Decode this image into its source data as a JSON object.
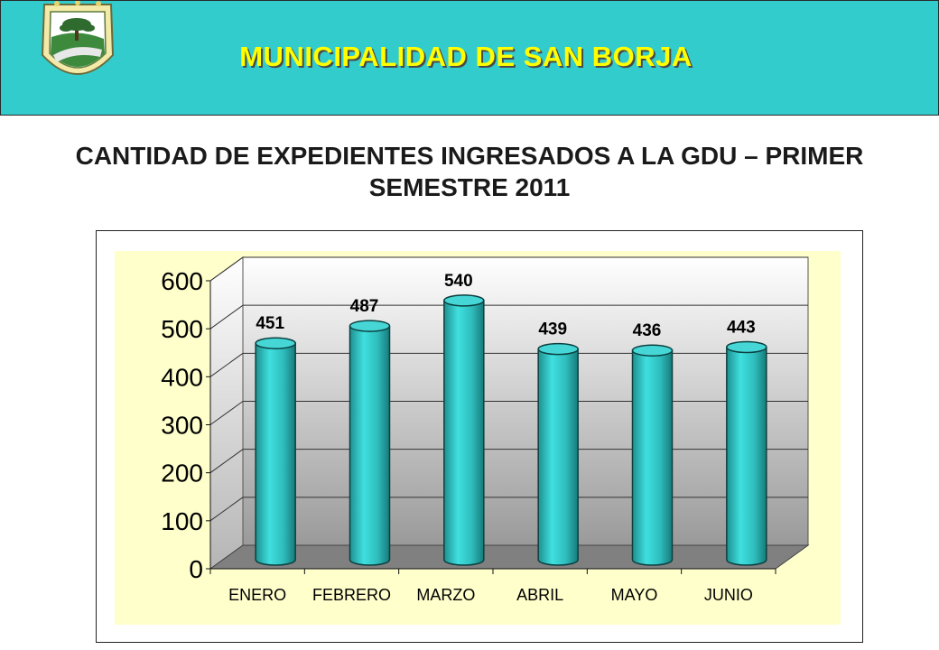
{
  "header": {
    "org_name": "MUNICIPALIDAD DE SAN BORJA",
    "background_color": "#33cccc",
    "org_name_color": "#ffff00",
    "logo_icon": "municipal-crest-icon"
  },
  "chart_title": "CANTIDAD DE EXPEDIENTES INGRESADOS A LA GDU – PRIMER SEMESTRE 2011",
  "chart_data": {
    "type": "bar",
    "style": "3d-cylinder",
    "title": "CANTIDAD DE EXPEDIENTES INGRESADOS A LA GDU – PRIMER SEMESTRE 2011",
    "categories": [
      "ENERO",
      "FEBRERO",
      "MARZO",
      "ABRIL",
      "MAYO",
      "JUNIO"
    ],
    "values": [
      451,
      487,
      540,
      439,
      436,
      443
    ],
    "data_labels": [
      "451",
      "487",
      "540",
      "439",
      "436",
      "443"
    ],
    "yticks": [
      "0",
      "100",
      "200",
      "300",
      "400",
      "500",
      "600"
    ],
    "ylim": [
      0,
      600
    ],
    "xlabel": "",
    "ylabel": "",
    "grid": true,
    "legend": "none",
    "bar_color": "#33cccc",
    "plot_background": "#ffffcc",
    "floor_color": "#808080"
  }
}
